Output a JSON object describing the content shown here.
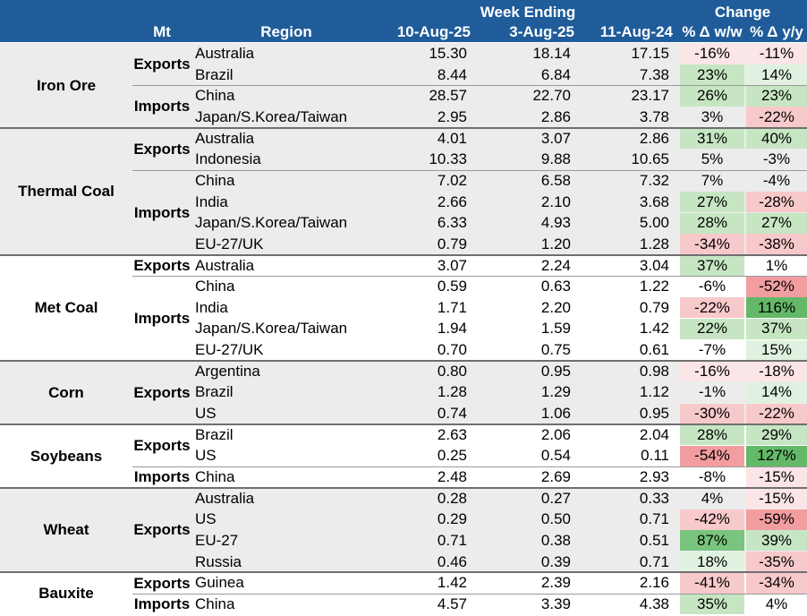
{
  "header": {
    "mt": "Mt",
    "region": "Region",
    "week_ending": "Week Ending",
    "col1": "10-Aug-25",
    "col2": "3-Aug-25",
    "col3": "11-Aug-24",
    "change": "Change",
    "wow": "% Δ w/w",
    "yoy": "% Δ y/y"
  },
  "colors": {
    "header_bg": "#1f5c99",
    "group_shade": "#ececec",
    "positive_scale": [
      "#e0f2df",
      "#c6e6c3",
      "#79c57d",
      "#63b967"
    ],
    "negative_scale": [
      "#fbe5e6",
      "#f8c9cb",
      "#f29d9f"
    ]
  },
  "groups": [
    {
      "name": "Iron Ore",
      "shaded": true,
      "flows": [
        {
          "flow": "Exports",
          "rows": [
            {
              "region": "Australia",
              "v1": "15.30",
              "v2": "18.14",
              "v3": "17.15",
              "wow": "-16%",
              "yoy": "-11%"
            },
            {
              "region": "Brazil",
              "v1": "8.44",
              "v2": "6.84",
              "v3": "7.38",
              "wow": "23%",
              "yoy": "14%"
            }
          ]
        },
        {
          "flow": "Imports",
          "rows": [
            {
              "region": "China",
              "v1": "28.57",
              "v2": "22.70",
              "v3": "23.17",
              "wow": "26%",
              "yoy": "23%"
            },
            {
              "region": "Japan/S.Korea/Taiwan",
              "v1": "2.95",
              "v2": "2.86",
              "v3": "3.78",
              "wow": "3%",
              "yoy": "-22%"
            }
          ]
        }
      ]
    },
    {
      "name": "Thermal Coal",
      "shaded": true,
      "flows": [
        {
          "flow": "Exports",
          "rows": [
            {
              "region": "Australia",
              "v1": "4.01",
              "v2": "3.07",
              "v3": "2.86",
              "wow": "31%",
              "yoy": "40%"
            },
            {
              "region": "Indonesia",
              "v1": "10.33",
              "v2": "9.88",
              "v3": "10.65",
              "wow": "5%",
              "yoy": "-3%"
            }
          ]
        },
        {
          "flow": "Imports",
          "rows": [
            {
              "region": "China",
              "v1": "7.02",
              "v2": "6.58",
              "v3": "7.32",
              "wow": "7%",
              "yoy": "-4%"
            },
            {
              "region": "India",
              "v1": "2.66",
              "v2": "2.10",
              "v3": "3.68",
              "wow": "27%",
              "yoy": "-28%"
            },
            {
              "region": "Japan/S.Korea/Taiwan",
              "v1": "6.33",
              "v2": "4.93",
              "v3": "5.00",
              "wow": "28%",
              "yoy": "27%"
            },
            {
              "region": "EU-27/UK",
              "v1": "0.79",
              "v2": "1.20",
              "v3": "1.28",
              "wow": "-34%",
              "yoy": "-38%"
            }
          ]
        }
      ]
    },
    {
      "name": "Met Coal",
      "shaded": false,
      "flows": [
        {
          "flow": "Exports",
          "rows": [
            {
              "region": "Australia",
              "v1": "3.07",
              "v2": "2.24",
              "v3": "3.04",
              "wow": "37%",
              "yoy": "1%"
            }
          ]
        },
        {
          "flow": "Imports",
          "rows": [
            {
              "region": "China",
              "v1": "0.59",
              "v2": "0.63",
              "v3": "1.22",
              "wow": "-6%",
              "yoy": "-52%"
            },
            {
              "region": "India",
              "v1": "1.71",
              "v2": "2.20",
              "v3": "0.79",
              "wow": "-22%",
              "yoy": "116%"
            },
            {
              "region": "Japan/S.Korea/Taiwan",
              "v1": "1.94",
              "v2": "1.59",
              "v3": "1.42",
              "wow": "22%",
              "yoy": "37%"
            },
            {
              "region": "EU-27/UK",
              "v1": "0.70",
              "v2": "0.75",
              "v3": "0.61",
              "wow": "-7%",
              "yoy": "15%"
            }
          ]
        }
      ]
    },
    {
      "name": "Corn",
      "shaded": true,
      "flows": [
        {
          "flow": "Exports",
          "rows": [
            {
              "region": "Argentina",
              "v1": "0.80",
              "v2": "0.95",
              "v3": "0.98",
              "wow": "-16%",
              "yoy": "-18%"
            },
            {
              "region": "Brazil",
              "v1": "1.28",
              "v2": "1.29",
              "v3": "1.12",
              "wow": "-1%",
              "yoy": "14%"
            },
            {
              "region": "US",
              "v1": "0.74",
              "v2": "1.06",
              "v3": "0.95",
              "wow": "-30%",
              "yoy": "-22%"
            }
          ]
        }
      ]
    },
    {
      "name": "Soybeans",
      "shaded": false,
      "flows": [
        {
          "flow": "Exports",
          "rows": [
            {
              "region": "Brazil",
              "v1": "2.63",
              "v2": "2.06",
              "v3": "2.04",
              "wow": "28%",
              "yoy": "29%"
            },
            {
              "region": "US",
              "v1": "0.25",
              "v2": "0.54",
              "v3": "0.11",
              "wow": "-54%",
              "yoy": "127%"
            }
          ]
        },
        {
          "flow": "Imports",
          "rows": [
            {
              "region": "China",
              "v1": "2.48",
              "v2": "2.69",
              "v3": "2.93",
              "wow": "-8%",
              "yoy": "-15%"
            }
          ]
        }
      ]
    },
    {
      "name": "Wheat",
      "shaded": true,
      "flows": [
        {
          "flow": "Exports",
          "rows": [
            {
              "region": "Australia",
              "v1": "0.28",
              "v2": "0.27",
              "v3": "0.33",
              "wow": "4%",
              "yoy": "-15%"
            },
            {
              "region": "US",
              "v1": "0.29",
              "v2": "0.50",
              "v3": "0.71",
              "wow": "-42%",
              "yoy": "-59%"
            },
            {
              "region": "EU-27",
              "v1": "0.71",
              "v2": "0.38",
              "v3": "0.51",
              "wow": "87%",
              "yoy": "39%"
            },
            {
              "region": "Russia",
              "v1": "0.46",
              "v2": "0.39",
              "v3": "0.71",
              "wow": "18%",
              "yoy": "-35%"
            }
          ]
        }
      ]
    },
    {
      "name": "Bauxite",
      "shaded": false,
      "flows": [
        {
          "flow": "Exports",
          "rows": [
            {
              "region": "Guinea",
              "v1": "1.42",
              "v2": "2.39",
              "v3": "2.16",
              "wow": "-41%",
              "yoy": "-34%"
            }
          ]
        },
        {
          "flow": "Imports",
          "rows": [
            {
              "region": "China",
              "v1": "4.57",
              "v2": "3.39",
              "v3": "4.38",
              "wow": "35%",
              "yoy": "4%"
            }
          ]
        }
      ]
    }
  ]
}
